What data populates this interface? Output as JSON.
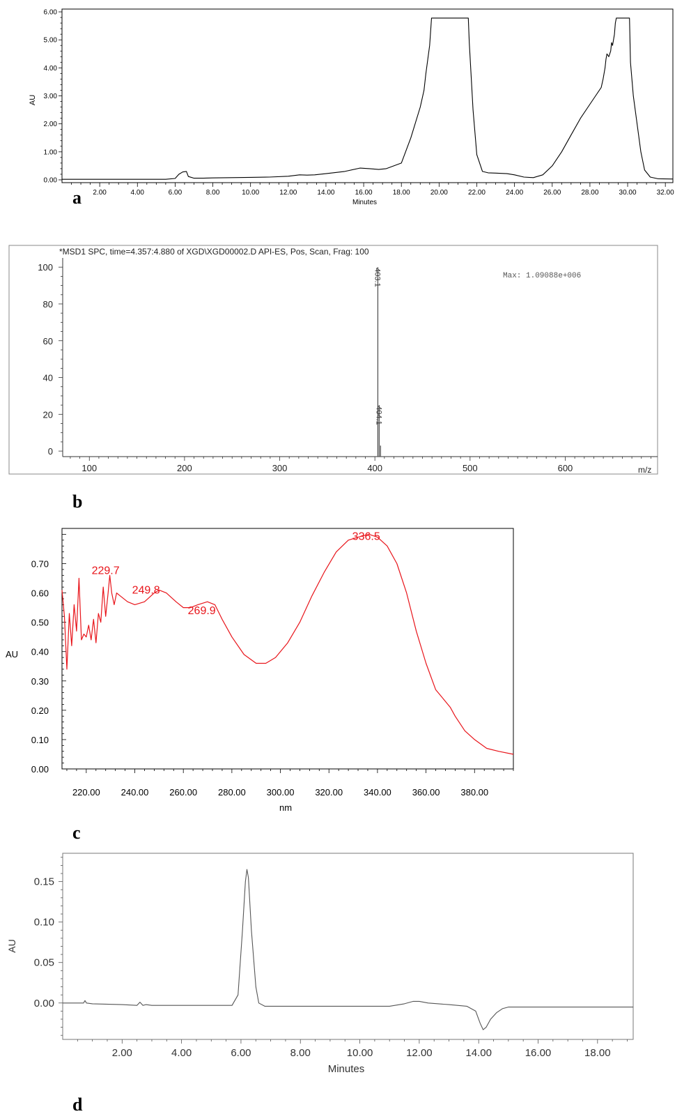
{
  "panels": {
    "a": {
      "label": "a"
    },
    "b": {
      "label": "b"
    },
    "c": {
      "label": "c"
    },
    "d": {
      "label": "d"
    }
  },
  "chart_data": [
    {
      "id": "a",
      "type": "line",
      "xlabel": "Minutes",
      "ylabel": "AU",
      "xlim": [
        0,
        32.4
      ],
      "ylim": [
        -0.1,
        6.1
      ],
      "xticks": [
        2,
        4,
        6,
        8,
        10,
        12,
        14,
        16,
        18,
        20,
        22,
        24,
        26,
        28,
        30,
        32
      ],
      "yticks": [
        0,
        1,
        2,
        3,
        4,
        5,
        6
      ],
      "line_color": "#000000",
      "series": [
        {
          "x": [
            0,
            5.5,
            6.0,
            6.2,
            6.4,
            6.6,
            6.7,
            7.0,
            7.5,
            8.0,
            9.0,
            10.0,
            11.0,
            12.0,
            12.6,
            13.0,
            13.4,
            14.0,
            15.0,
            15.8,
            16.3,
            16.8,
            17.2,
            17.6,
            18.0,
            18.5,
            19.0,
            19.2,
            19.3,
            19.4,
            19.5,
            19.6,
            21.55,
            21.6,
            21.8,
            22.0,
            22.3,
            22.6,
            23.0,
            23.6,
            24.0,
            24.5,
            25.0,
            25.5,
            26.0,
            26.5,
            27.0,
            27.5,
            28.0,
            28.3,
            28.6,
            28.7,
            28.8,
            28.85,
            28.9,
            29.0,
            29.1,
            29.15,
            29.2,
            29.3,
            29.35,
            29.4,
            29.45,
            30.1,
            30.15,
            30.3,
            30.5,
            30.7,
            30.9,
            31.2,
            31.6,
            32.4
          ],
          "y": [
            0.02,
            0.02,
            0.05,
            0.2,
            0.28,
            0.3,
            0.12,
            0.06,
            0.06,
            0.07,
            0.08,
            0.09,
            0.1,
            0.13,
            0.18,
            0.17,
            0.18,
            0.22,
            0.3,
            0.42,
            0.4,
            0.37,
            0.4,
            0.5,
            0.6,
            1.5,
            2.6,
            3.2,
            3.8,
            4.3,
            4.8,
            5.78,
            5.78,
            4.9,
            2.5,
            0.9,
            0.3,
            0.25,
            0.24,
            0.22,
            0.18,
            0.1,
            0.08,
            0.18,
            0.5,
            1.0,
            1.6,
            2.2,
            2.7,
            3.0,
            3.3,
            3.6,
            4.0,
            4.3,
            4.5,
            4.4,
            4.6,
            4.9,
            4.8,
            5.2,
            5.6,
            5.78,
            5.78,
            5.78,
            4.2,
            3.0,
            2.0,
            1.0,
            0.35,
            0.1,
            0.04,
            0.03
          ]
        }
      ]
    },
    {
      "id": "b",
      "type": "bar",
      "title": "*MSD1 SPC, time=4.357:4.880 of XGD\\XGD00002.D    API-ES, Pos, Scan, Frag: 100",
      "annotation": "Max: 1.09088e+006",
      "xlabel": "m/z",
      "xlim": [
        72,
        697
      ],
      "ylim": [
        -3,
        105
      ],
      "xticks": [
        100,
        200,
        300,
        400,
        500,
        600
      ],
      "yticks": [
        0,
        20,
        40,
        60,
        80,
        100
      ],
      "line_color": "#555555",
      "peaks": [
        {
          "mz": 403.1,
          "intensity": 100,
          "label": "403.1"
        },
        {
          "mz": 404.1,
          "intensity": 25,
          "label": "404.1"
        },
        {
          "mz": 405.1,
          "intensity": 3,
          "label": ""
        }
      ]
    },
    {
      "id": "c",
      "type": "line",
      "xlabel": "nm",
      "ylabel": "AU",
      "xlim": [
        210,
        396
      ],
      "ylim": [
        0,
        0.82
      ],
      "xticks": [
        220,
        240,
        260,
        280,
        300,
        320,
        340,
        360,
        380
      ],
      "yticks": [
        0,
        0.1,
        0.2,
        0.3,
        0.4,
        0.5,
        0.6,
        0.7
      ],
      "line_color": "#e8141a",
      "peak_labels": [
        {
          "x": 229.7,
          "y": 0.66,
          "label": "229.7"
        },
        {
          "x": 249.8,
          "y": 0.61,
          "label": "249.8"
        },
        {
          "x": 269.9,
          "y": 0.57,
          "label": "269.9"
        },
        {
          "x": 336.5,
          "y": 0.8,
          "label": "336.5"
        }
      ],
      "series": [
        {
          "x": [
            210,
            211,
            212,
            213,
            214,
            215,
            216,
            217,
            218,
            219,
            220,
            221,
            222,
            223,
            224,
            225,
            226,
            227,
            228,
            229,
            229.7,
            230.5,
            231.5,
            232.5,
            234,
            237,
            240,
            244,
            248,
            250,
            253,
            257,
            260,
            263,
            266,
            269.9,
            273,
            276,
            280,
            285,
            290,
            294,
            298,
            303,
            308,
            313,
            318,
            323,
            328,
            332,
            336.5,
            340,
            344,
            348,
            352,
            356,
            360,
            364,
            366,
            368,
            370,
            372,
            376,
            380,
            385,
            390,
            396
          ],
          "y": [
            0.61,
            0.52,
            0.34,
            0.53,
            0.42,
            0.56,
            0.47,
            0.65,
            0.44,
            0.46,
            0.45,
            0.49,
            0.44,
            0.51,
            0.43,
            0.53,
            0.5,
            0.62,
            0.52,
            0.6,
            0.66,
            0.6,
            0.56,
            0.6,
            0.59,
            0.57,
            0.56,
            0.57,
            0.6,
            0.61,
            0.6,
            0.57,
            0.55,
            0.55,
            0.56,
            0.57,
            0.56,
            0.51,
            0.45,
            0.39,
            0.36,
            0.36,
            0.38,
            0.43,
            0.5,
            0.59,
            0.67,
            0.74,
            0.78,
            0.79,
            0.8,
            0.79,
            0.76,
            0.7,
            0.6,
            0.47,
            0.36,
            0.27,
            0.25,
            0.23,
            0.21,
            0.18,
            0.13,
            0.1,
            0.07,
            0.06,
            0.05
          ]
        }
      ]
    },
    {
      "id": "d",
      "type": "line",
      "xlabel": "Minutes",
      "ylabel": "AU",
      "xlim": [
        0,
        19.2
      ],
      "ylim": [
        -0.045,
        0.185
      ],
      "xticks": [
        2,
        4,
        6,
        8,
        10,
        12,
        14,
        16,
        18
      ],
      "yticks": [
        0,
        0.05,
        0.1,
        0.15
      ],
      "line_color": "#555555",
      "series": [
        {
          "x": [
            0,
            0.7,
            0.75,
            0.8,
            1.0,
            2.0,
            2.5,
            2.6,
            2.7,
            2.8,
            3.0,
            4.0,
            5.0,
            5.7,
            5.9,
            6.05,
            6.15,
            6.2,
            6.25,
            6.35,
            6.5,
            6.6,
            6.8,
            8.0,
            10.0,
            11.0,
            11.5,
            11.8,
            12.0,
            12.3,
            13.0,
            13.6,
            13.9,
            14.05,
            14.15,
            14.25,
            14.4,
            14.6,
            14.8,
            15.0,
            16.0,
            17.0,
            18.0,
            19.2
          ],
          "y": [
            0,
            0,
            0.003,
            0,
            -0.001,
            -0.002,
            -0.003,
            0.001,
            -0.003,
            -0.002,
            -0.003,
            -0.003,
            -0.003,
            -0.003,
            0.01,
            0.09,
            0.15,
            0.165,
            0.155,
            0.09,
            0.02,
            0.0,
            -0.004,
            -0.004,
            -0.004,
            -0.004,
            -0.001,
            0.002,
            0.002,
            0.0,
            -0.002,
            -0.004,
            -0.01,
            -0.025,
            -0.033,
            -0.03,
            -0.02,
            -0.012,
            -0.007,
            -0.005,
            -0.005,
            -0.005,
            -0.005,
            -0.005
          ]
        }
      ]
    }
  ]
}
